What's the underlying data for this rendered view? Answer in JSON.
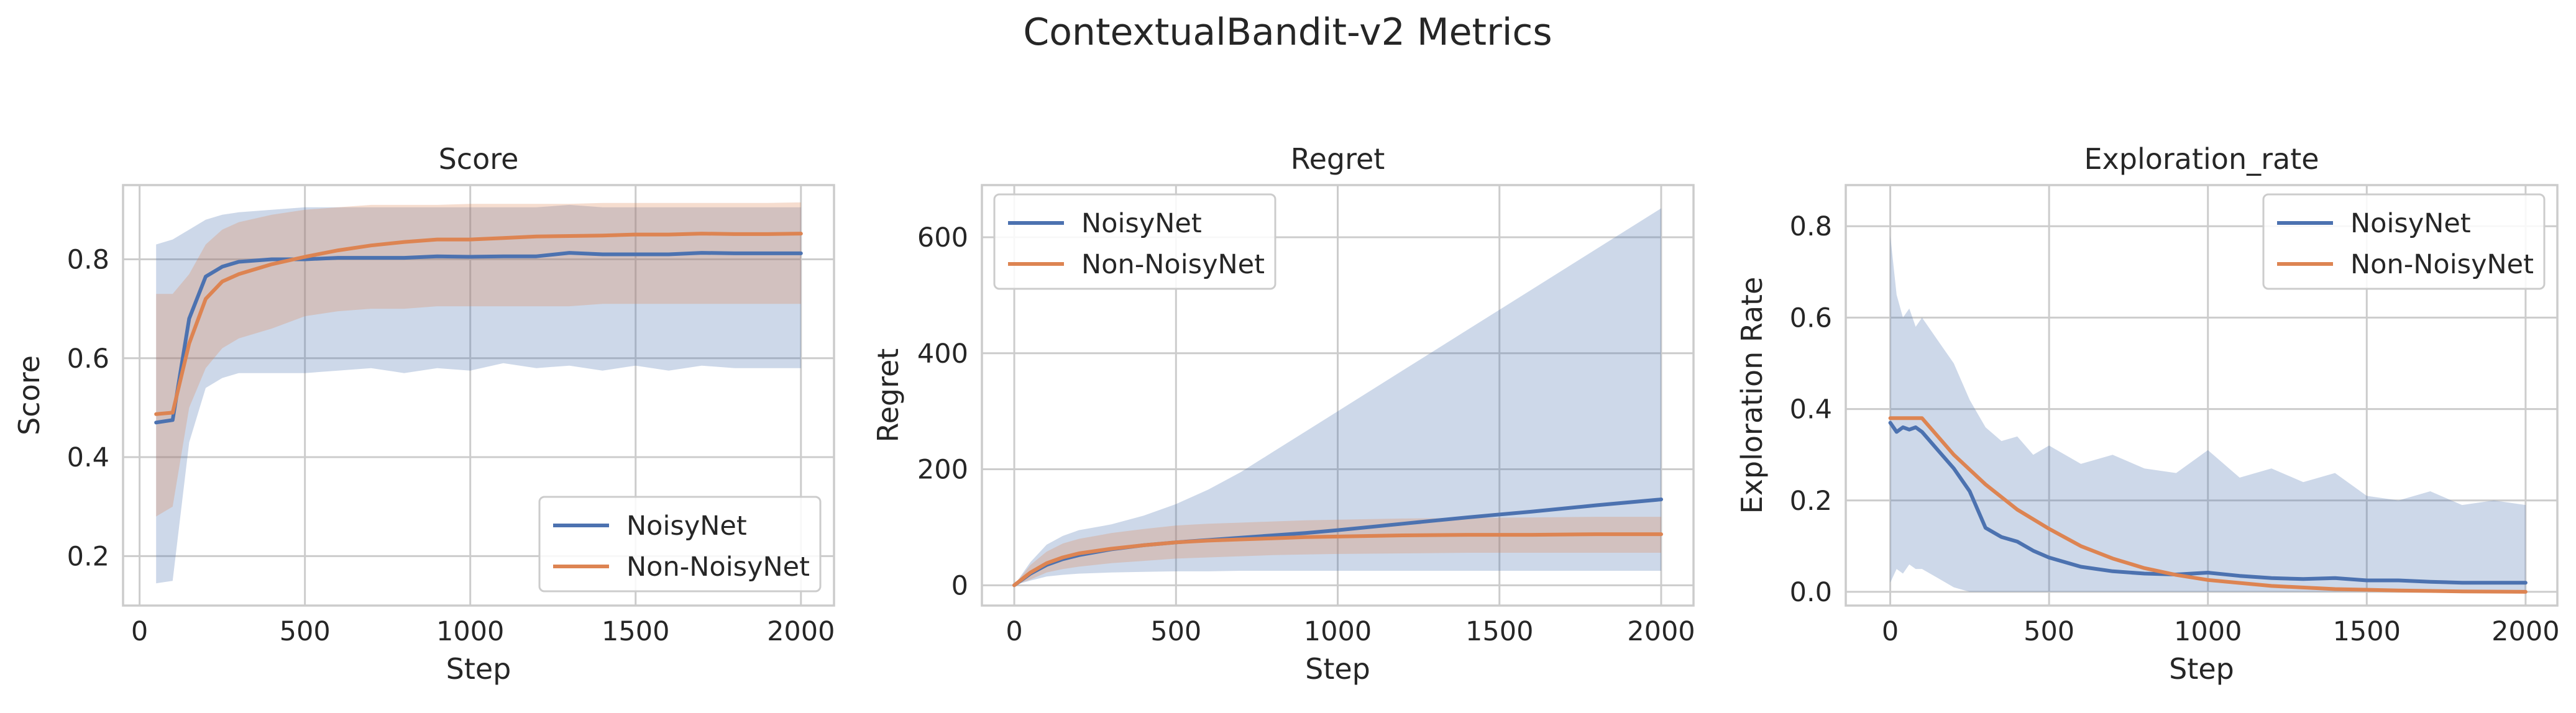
{
  "figure": {
    "suptitle": "ContextualBandit-v2 Metrics"
  },
  "colors": {
    "noisynet": "#4c72b0",
    "non_noisynet": "#dd8452",
    "grid": "#cccccc",
    "spine": "#cccccc"
  },
  "chart_data": [
    {
      "type": "line",
      "title": "Score",
      "xlabel": "Step",
      "ylabel": "Score",
      "xlim": [
        -50,
        2100
      ],
      "ylim": [
        0.1,
        0.95
      ],
      "xticks": [
        0,
        500,
        1000,
        1500,
        2000
      ],
      "xtick_labels": [
        "0",
        "500",
        "1000",
        "1500",
        "2000"
      ],
      "yticks": [
        0.2,
        0.4,
        0.6,
        0.8
      ],
      "ytick_labels": [
        "0.2",
        "0.4",
        "0.6",
        "0.8"
      ],
      "grid": true,
      "legend_position": "lower-right",
      "series": [
        {
          "name": "NoisyNet",
          "color": "#4c72b0",
          "x": [
            50,
            100,
            150,
            200,
            250,
            300,
            400,
            500,
            600,
            700,
            800,
            900,
            1000,
            1100,
            1200,
            1300,
            1400,
            1500,
            1600,
            1700,
            1800,
            1900,
            2000
          ],
          "y": [
            0.47,
            0.475,
            0.68,
            0.765,
            0.785,
            0.795,
            0.8,
            0.8,
            0.803,
            0.803,
            0.803,
            0.806,
            0.805,
            0.806,
            0.806,
            0.813,
            0.81,
            0.81,
            0.81,
            0.813,
            0.812,
            0.812,
            0.812
          ],
          "band_low": [
            0.145,
            0.15,
            0.43,
            0.54,
            0.56,
            0.57,
            0.57,
            0.57,
            0.575,
            0.58,
            0.57,
            0.58,
            0.575,
            0.59,
            0.58,
            0.585,
            0.575,
            0.585,
            0.575,
            0.585,
            0.58,
            0.58,
            0.58
          ],
          "band_high": [
            0.83,
            0.84,
            0.86,
            0.88,
            0.89,
            0.895,
            0.9,
            0.905,
            0.905,
            0.905,
            0.905,
            0.905,
            0.905,
            0.905,
            0.905,
            0.91,
            0.905,
            0.905,
            0.905,
            0.905,
            0.905,
            0.905,
            0.905
          ]
        },
        {
          "name": "Non-NoisyNet",
          "color": "#dd8452",
          "x": [
            50,
            100,
            150,
            200,
            250,
            300,
            400,
            500,
            600,
            700,
            800,
            900,
            1000,
            1100,
            1200,
            1300,
            1400,
            1500,
            1600,
            1700,
            1800,
            1900,
            2000
          ],
          "y": [
            0.487,
            0.49,
            0.63,
            0.72,
            0.755,
            0.77,
            0.79,
            0.805,
            0.818,
            0.828,
            0.835,
            0.84,
            0.84,
            0.843,
            0.846,
            0.847,
            0.848,
            0.85,
            0.85,
            0.852,
            0.851,
            0.851,
            0.852
          ],
          "band_low": [
            0.28,
            0.3,
            0.5,
            0.58,
            0.62,
            0.64,
            0.66,
            0.685,
            0.695,
            0.7,
            0.7,
            0.705,
            0.705,
            0.705,
            0.705,
            0.705,
            0.71,
            0.71,
            0.71,
            0.71,
            0.71,
            0.71,
            0.71
          ],
          "band_high": [
            0.73,
            0.73,
            0.77,
            0.83,
            0.86,
            0.875,
            0.89,
            0.9,
            0.905,
            0.91,
            0.91,
            0.91,
            0.912,
            0.912,
            0.912,
            0.912,
            0.914,
            0.914,
            0.914,
            0.914,
            0.914,
            0.914,
            0.915
          ]
        }
      ]
    },
    {
      "type": "line",
      "title": "Regret",
      "xlabel": "Step",
      "ylabel": "Regret",
      "xlim": [
        -100,
        2100
      ],
      "ylim": [
        -35,
        690
      ],
      "xticks": [
        0,
        500,
        1000,
        1500,
        2000
      ],
      "xtick_labels": [
        "0",
        "500",
        "1000",
        "1500",
        "2000"
      ],
      "yticks": [
        0,
        200,
        400,
        600
      ],
      "ytick_labels": [
        "0",
        "200",
        "400",
        "600"
      ],
      "grid": true,
      "legend_position": "upper-left",
      "series": [
        {
          "name": "NoisyNet",
          "color": "#4c72b0",
          "x": [
            0,
            50,
            100,
            150,
            200,
            300,
            400,
            500,
            600,
            700,
            800,
            900,
            1000,
            1200,
            1400,
            1600,
            1800,
            2000
          ],
          "y": [
            0,
            20,
            35,
            45,
            52,
            62,
            69,
            74,
            78,
            82,
            86,
            90,
            95,
            106,
            117,
            127,
            138,
            148
          ],
          "band_low": [
            0,
            8,
            15,
            18,
            20,
            22,
            23,
            24,
            24,
            25,
            25,
            25,
            25,
            25,
            25,
            25,
            25,
            25
          ],
          "band_high": [
            0,
            40,
            70,
            85,
            95,
            105,
            120,
            140,
            165,
            195,
            230,
            265,
            300,
            370,
            440,
            510,
            580,
            650
          ]
        },
        {
          "name": "Non-NoisyNet",
          "color": "#dd8452",
          "x": [
            0,
            50,
            100,
            150,
            200,
            300,
            400,
            500,
            600,
            700,
            800,
            900,
            1000,
            1200,
            1400,
            1600,
            1800,
            2000
          ],
          "y": [
            0,
            22,
            38,
            48,
            55,
            63,
            69,
            74,
            77,
            79,
            81,
            83,
            84,
            86,
            87,
            87,
            88,
            88
          ],
          "band_low": [
            0,
            10,
            22,
            28,
            32,
            38,
            42,
            46,
            48,
            50,
            52,
            53,
            54,
            55,
            56,
            56,
            56,
            56
          ],
          "band_high": [
            0,
            35,
            58,
            72,
            80,
            90,
            97,
            103,
            106,
            108,
            110,
            112,
            113,
            115,
            116,
            117,
            118,
            118
          ]
        }
      ]
    },
    {
      "type": "line",
      "title": "Exploration_rate",
      "xlabel": "Step",
      "ylabel": "Exploration Rate",
      "xlim": [
        -140,
        2100
      ],
      "ylim": [
        -0.03,
        0.89
      ],
      "xticks": [
        0,
        500,
        1000,
        1500,
        2000
      ],
      "xtick_labels": [
        "0",
        "500",
        "1000",
        "1500",
        "2000"
      ],
      "yticks": [
        0.0,
        0.2,
        0.4,
        0.6,
        0.8
      ],
      "ytick_labels": [
        "0.0",
        "0.2",
        "0.4",
        "0.6",
        "0.8"
      ],
      "grid": true,
      "legend_position": "upper-right",
      "series": [
        {
          "name": "NoisyNet",
          "color": "#4c72b0",
          "x": [
            0,
            20,
            40,
            60,
            80,
            100,
            150,
            200,
            250,
            300,
            350,
            400,
            450,
            500,
            600,
            700,
            800,
            900,
            1000,
            1100,
            1200,
            1300,
            1400,
            1500,
            1600,
            1700,
            1800,
            1900,
            2000
          ],
          "y": [
            0.37,
            0.35,
            0.36,
            0.355,
            0.36,
            0.35,
            0.31,
            0.27,
            0.22,
            0.14,
            0.12,
            0.11,
            0.09,
            0.075,
            0.055,
            0.045,
            0.04,
            0.038,
            0.042,
            0.035,
            0.03,
            0.028,
            0.03,
            0.025,
            0.025,
            0.022,
            0.02,
            0.02,
            0.02
          ],
          "band_low": [
            0.02,
            0.05,
            0.04,
            0.06,
            0.05,
            0.05,
            0.03,
            0.01,
            0.0,
            0.0,
            0.0,
            0.0,
            0.0,
            0.0,
            0.0,
            0.0,
            0.0,
            0.0,
            0.0,
            0.0,
            0.0,
            0.0,
            0.0,
            0.0,
            0.0,
            0.0,
            0.0,
            0.0,
            0.0
          ],
          "band_high": [
            0.78,
            0.65,
            0.6,
            0.62,
            0.58,
            0.6,
            0.55,
            0.5,
            0.42,
            0.36,
            0.33,
            0.34,
            0.3,
            0.32,
            0.28,
            0.3,
            0.27,
            0.26,
            0.31,
            0.25,
            0.27,
            0.24,
            0.26,
            0.21,
            0.2,
            0.22,
            0.19,
            0.2,
            0.19
          ]
        },
        {
          "name": "Non-NoisyNet",
          "color": "#dd8452",
          "x": [
            0,
            50,
            100,
            150,
            200,
            300,
            400,
            500,
            600,
            700,
            800,
            900,
            1000,
            1200,
            1400,
            1600,
            1800,
            2000
          ],
          "y": [
            0.38,
            0.38,
            0.38,
            0.34,
            0.3,
            0.235,
            0.18,
            0.138,
            0.1,
            0.073,
            0.052,
            0.037,
            0.026,
            0.013,
            0.006,
            0.003,
            0.001,
            0.0
          ],
          "band_low": [],
          "band_high": []
        }
      ]
    }
  ]
}
